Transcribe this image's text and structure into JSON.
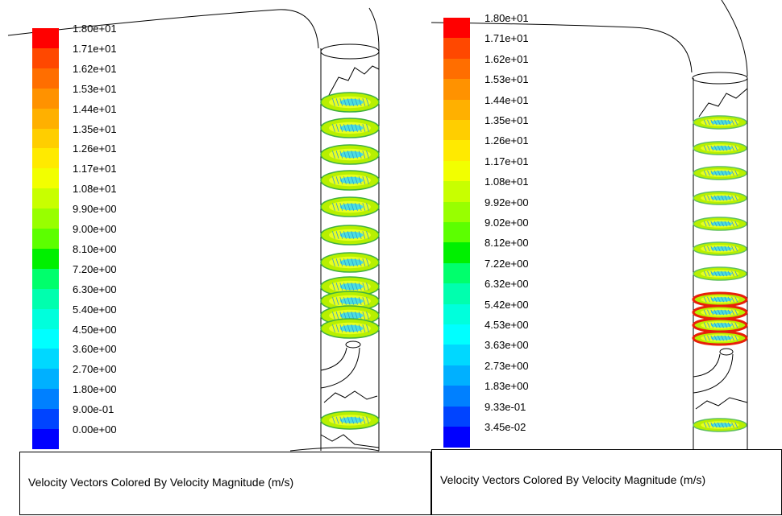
{
  "panels": [
    {
      "id": "left",
      "caption": "Velocity Vectors Colored By Velocity Magnitude (m/s)",
      "legend_labels": [
        "1.80e+01",
        "1.71e+01",
        "1.62e+01",
        "1.53e+01",
        "1.44e+01",
        "1.35e+01",
        "1.26e+01",
        "1.17e+01",
        "1.08e+01",
        "9.90e+00",
        "9.00e+00",
        "8.10e+00",
        "7.20e+00",
        "6.30e+00",
        "5.40e+00",
        "4.50e+00",
        "3.60e+00",
        "2.70e+00",
        "1.80e+00",
        "9.00e-01",
        "0.00e+00"
      ]
    },
    {
      "id": "right",
      "caption": "Velocity Vectors Colored By Velocity Magnitude (m/s)",
      "legend_labels": [
        "1.80e+01",
        "1.71e+01",
        "1.62e+01",
        "1.53e+01",
        "1.44e+01",
        "1.35e+01",
        "1.26e+01",
        "1.17e+01",
        "1.08e+01",
        "9.92e+00",
        "9.02e+00",
        "8.12e+00",
        "7.22e+00",
        "6.32e+00",
        "5.42e+00",
        "4.53e+00",
        "3.63e+00",
        "2.73e+00",
        "1.83e+00",
        "9.33e-01",
        "3.45e-02"
      ]
    }
  ],
  "legend_colors": [
    "#ff0000",
    "#ff4800",
    "#ff6e00",
    "#ff9200",
    "#ffb000",
    "#ffce00",
    "#ffea00",
    "#f2ff00",
    "#c8ff00",
    "#98ff00",
    "#5cff00",
    "#00f000",
    "#00ff6c",
    "#00ffae",
    "#00ffdc",
    "#00ffff",
    "#00d8ff",
    "#00b0ff",
    "#0080ff",
    "#0044ff",
    "#0000ff"
  ]
}
